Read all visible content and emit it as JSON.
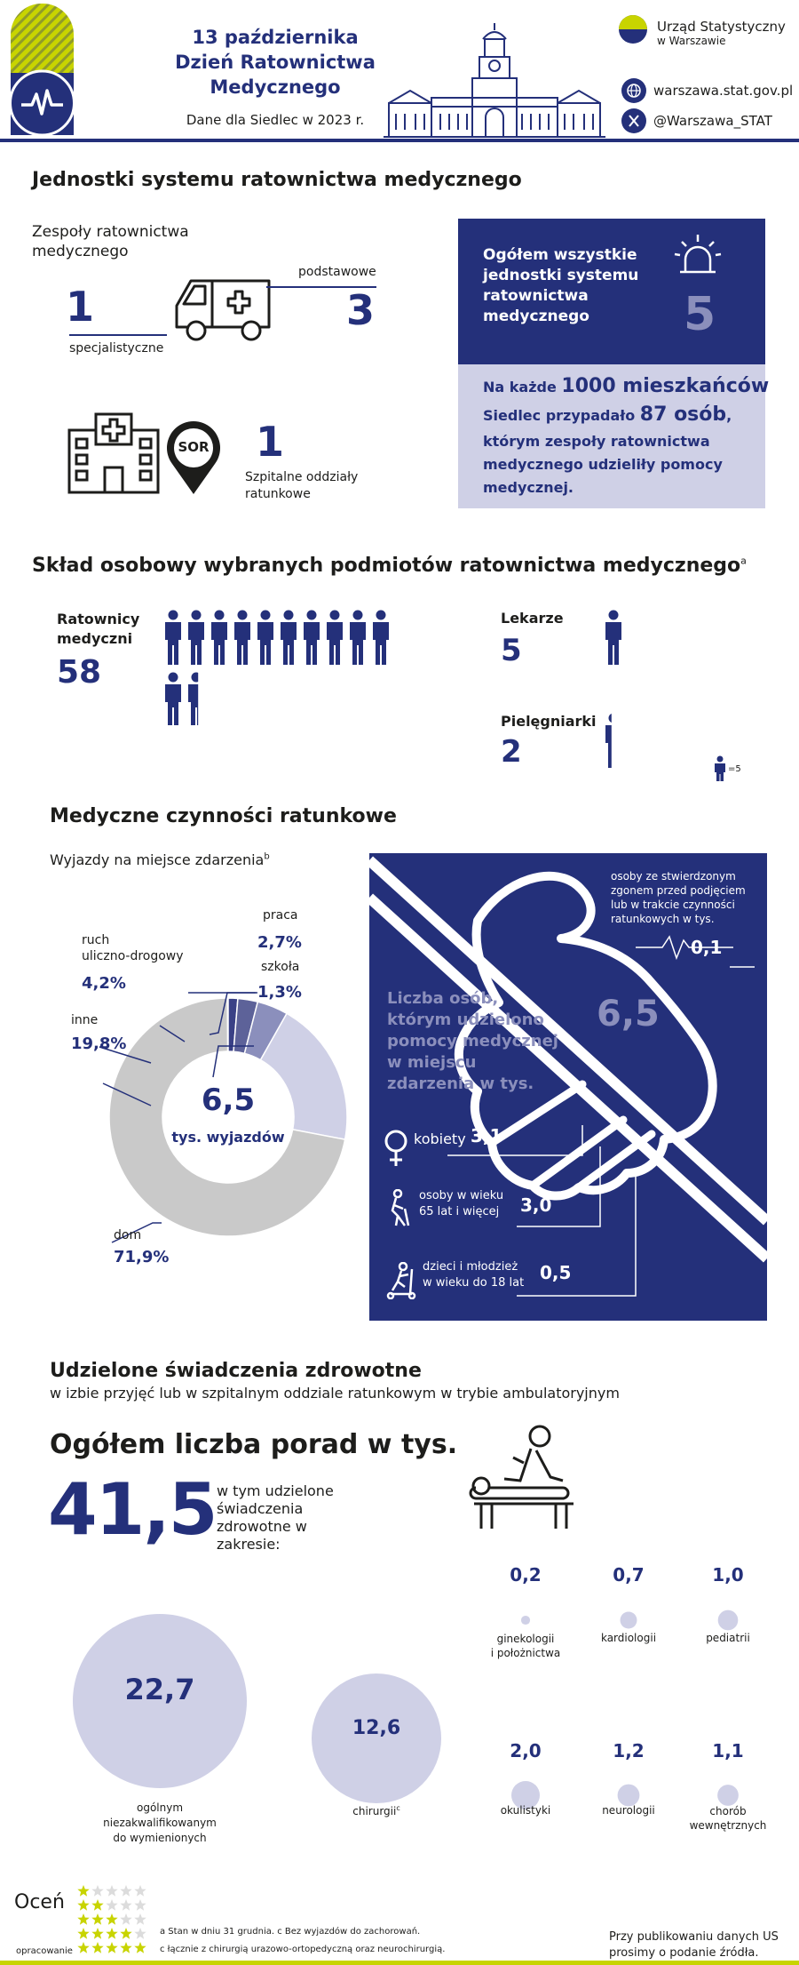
{
  "header": {
    "title_line1": "13 października",
    "title_line2": "Dzień Ratownictwa",
    "title_line3": "Medycznego",
    "subtitle": "Dane dla Siedlec w 2023 r.",
    "org_name_line1": "Urząd Statystyczny",
    "org_name_line2": "w Warszawie",
    "website": "warszawa.stat.gov.pl",
    "social": "@Warszawa_STAT"
  },
  "units": {
    "title": "Jednostki systemu ratownictwa medycznego",
    "teams_label": "Zespoły ratownictwa medycznego",
    "specialist_value": "1",
    "specialist_label": "specjalistyczne",
    "basic_value": "3",
    "basic_label": "podstawowe",
    "er_value": "1",
    "er_label": "Szpitalne oddziały ratunkowe",
    "er_sign": "SOR",
    "total_label": "Ogółem wszystkie jednostki systemu ratownictwa medycznego",
    "total_value": "5",
    "per_line1_a": "Na każde",
    "per_line1_b": "1000 mieszkańców",
    "per_line2_a": "Siedlec przypadało",
    "per_line2_b": "87 osób",
    "per_line2_c": ",",
    "per_rest": "którym zespoły ratownictwa medycznego udzieliły pomocy medycznej."
  },
  "staff": {
    "title": "Skład osobowy wybranych podmiotów ratownictwa medycznego",
    "title_note": "a",
    "paramedics_label": "Ratownicy medyczni",
    "paramedics_value": "58",
    "doctors_label": "Lekarze",
    "doctors_value": "5",
    "nurses_label": "Pielęgniarki",
    "nurses_value": "2",
    "legend_value": "=5"
  },
  "actions": {
    "title": "Medyczne czynności ratunkowe",
    "subtitle": "Wyjazdy na miejsce zdarzenia",
    "subtitle_note": "b",
    "donut_value": "6,5",
    "donut_unit": "tys. wyjazdów",
    "segments": [
      {
        "label": "dom",
        "value": "71,9%",
        "share": 71.9,
        "color": "#c9c9c9"
      },
      {
        "label": "inne",
        "value": "19,8%",
        "share": 19.8,
        "color": "#cfd0e6"
      },
      {
        "label": "ruch uliczno-drogowy",
        "value": "4,2%",
        "share": 4.2,
        "color": "#8b8fbc"
      },
      {
        "label": "praca",
        "value": "2,7%",
        "share": 2.7,
        "color": "#5d6299"
      },
      {
        "label": "szkoła",
        "value": "1,3%",
        "share": 1.3,
        "color": "#3a4186"
      }
    ],
    "label_traffic_line1": "ruch",
    "label_traffic_line2": "uliczno-drogowy",
    "help_label": "Liczba osób, którym udzielono pomocy medycznej w miejscu zdarzenia w tys.",
    "help_value": "6,5",
    "deaths_label": "osoby ze stwierdzonym zgonem przed podjęciem lub w trakcie czynności ratunkowych w tys.",
    "deaths_value": "0,1",
    "women_label": "kobiety",
    "women_value": "3,1",
    "seniors_label_line1": "osoby w wieku",
    "seniors_label_line2": "65 lat i więcej",
    "seniors_value": "3,0",
    "youth_label_line1": "dzieci i młodzież",
    "youth_label_line2": "w wieku do 18 lat",
    "youth_value": "0,5"
  },
  "services": {
    "title": "Udzielone świadczenia zdrowotne",
    "subtitle": "w izbie przyjęć lub w szpitalnym oddziale ratunkowym w trybie ambulatoryjnym",
    "total_label": "Ogółem liczba porad w tys.",
    "total_value": "41,5",
    "scope_label": "w tym udzielone świadczenia zdrowotne w zakresie:",
    "items": [
      {
        "label_line1": "ogólnym",
        "label_line2": "niezakwalifikowanym",
        "label_line3": "do wymienionych",
        "value": "22,7"
      },
      {
        "label_line1": "chirurgii",
        "note": "c",
        "value": "12,6"
      },
      {
        "label_line1": "ginekologii",
        "label_line2": "i położnictwa",
        "value": "0,2"
      },
      {
        "label_line1": "kardiologii",
        "value": "0,7"
      },
      {
        "label_line1": "pediatrii",
        "value": "1,0"
      },
      {
        "label_line1": "okulistyki",
        "value": "2,0"
      },
      {
        "label_line1": "neurologii",
        "value": "1,2"
      },
      {
        "label_line1": "chorób",
        "label_line2": "wewnętrznych",
        "value": "1,1"
      }
    ]
  },
  "footer": {
    "rate_label": "Oceń",
    "rate_sub": "opracowanie",
    "note_line1": "a Stan w dniu 31 grudnia. c Bez wyjazdów do zachorowań.",
    "note_line2": "c łącznie z chirurgią urazowo-ortopedyczną oraz neurochirurgią.",
    "publish_line1": "Przy publikowaniu danych US",
    "publish_line2": "prosimy o podanie źródła."
  },
  "colors": {
    "navy": "#24307a",
    "lavender": "#cfd0e6",
    "grey": "#c9c9c9",
    "lime": "#c8d400"
  }
}
